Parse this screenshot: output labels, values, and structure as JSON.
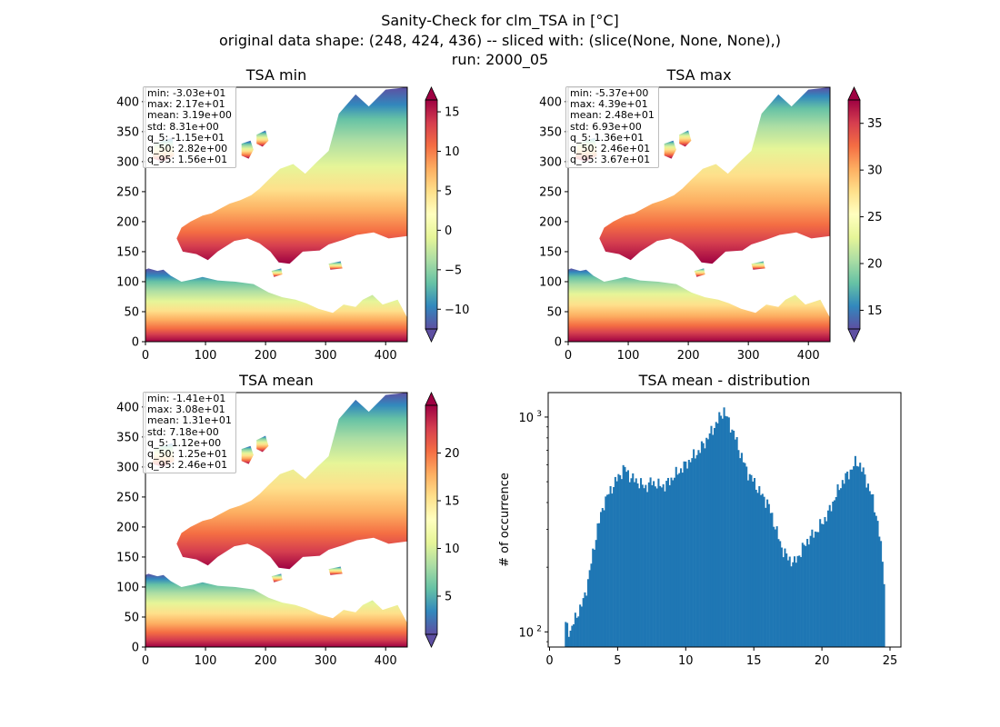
{
  "figure": {
    "title_lines": [
      "Sanity-Check for clm_TSA in [°C]",
      "original data shape: (248, 424, 436) -- sliced with: (slice(None, None, None),)",
      "run: 2000_05"
    ]
  },
  "chart_data": [
    {
      "type": "heatmap",
      "title": "TSA min",
      "colormap": "Spectral_r",
      "xlim": [
        0,
        436
      ],
      "ylim": [
        0,
        424
      ],
      "xticks": [
        "0",
        "100",
        "200",
        "300",
        "400"
      ],
      "yticks": [
        "0",
        "50",
        "100",
        "150",
        "200",
        "250",
        "300",
        "350",
        "400"
      ],
      "colorbar": {
        "range": [
          -12.5,
          16.5
        ],
        "ticks": [
          "15",
          "10",
          "5",
          "0",
          "−5",
          "−10"
        ],
        "extend": "both"
      },
      "stats": [
        "min: -3.03e+01",
        "max: 2.17e+01",
        "mean: 3.19e+00",
        "std: 8.31e+00",
        "q_5: -1.15e+01",
        "q_50: 2.82e+00",
        "q_95: 1.56e+01"
      ]
    },
    {
      "type": "heatmap",
      "title": "TSA max",
      "colormap": "Spectral_r",
      "xlim": [
        0,
        436
      ],
      "ylim": [
        0,
        424
      ],
      "xticks": [
        "0",
        "100",
        "200",
        "300",
        "400"
      ],
      "yticks": [
        "0",
        "50",
        "100",
        "150",
        "200",
        "250",
        "300",
        "350",
        "400"
      ],
      "colorbar": {
        "range": [
          13,
          37.5
        ],
        "ticks": [
          "35",
          "30",
          "25",
          "20",
          "15"
        ],
        "extend": "both"
      },
      "stats": [
        "min: -5.37e+00",
        "max: 4.39e+01",
        "mean: 2.48e+01",
        "std: 6.93e+00",
        "q_5: 1.36e+01",
        "q_50: 2.46e+01",
        "q_95: 3.67e+01"
      ]
    },
    {
      "type": "heatmap",
      "title": "TSA mean",
      "colormap": "Spectral_r",
      "xlim": [
        0,
        436
      ],
      "ylim": [
        0,
        424
      ],
      "xticks": [
        "0",
        "100",
        "200",
        "300",
        "400"
      ],
      "yticks": [
        "0",
        "50",
        "100",
        "150",
        "200",
        "250",
        "300",
        "350",
        "400"
      ],
      "colorbar": {
        "range": [
          1,
          25
        ],
        "ticks": [
          "20",
          "15",
          "10",
          "5"
        ],
        "extend": "both"
      },
      "stats": [
        "min: -1.41e+01",
        "max: 3.08e+01",
        "mean: 1.31e+01",
        "std: 7.18e+00",
        "q_5: 1.12e+00",
        "q_50: 1.25e+01",
        "q_95: 2.46e+01"
      ]
    },
    {
      "type": "bar",
      "title": "TSA mean - distribution",
      "xlabel": "",
      "ylabel": "# of occurrence",
      "yscale": "log",
      "xlim": [
        -0.1,
        25.8
      ],
      "ylim": [
        85,
        1300
      ],
      "xticks": [
        "0",
        "5",
        "10",
        "15",
        "20",
        "25"
      ],
      "yticks": [
        "10",
        "10"
      ],
      "ytick_exponents": [
        "2",
        "3"
      ],
      "color": "#1f77b4",
      "bins": {
        "start": 1.12,
        "width": 0.1175
      },
      "anchors": [
        [
          1.1,
          110
        ],
        [
          1.5,
          100
        ],
        [
          2.0,
          120
        ],
        [
          2.5,
          140
        ],
        [
          2.8,
          170
        ],
        [
          3.0,
          200
        ],
        [
          3.5,
          300
        ],
        [
          4.0,
          400
        ],
        [
          4.5,
          460
        ],
        [
          5.0,
          520
        ],
        [
          5.5,
          580
        ],
        [
          6.0,
          520
        ],
        [
          6.5,
          500
        ],
        [
          7.0,
          470
        ],
        [
          7.5,
          500
        ],
        [
          8.0,
          480
        ],
        [
          8.5,
          480
        ],
        [
          9.0,
          520
        ],
        [
          9.5,
          560
        ],
        [
          10.0,
          600
        ],
        [
          10.5,
          650
        ],
        [
          11.0,
          700
        ],
        [
          11.5,
          780
        ],
        [
          12.0,
          880
        ],
        [
          12.5,
          1000
        ],
        [
          12.8,
          1080
        ],
        [
          13.0,
          1000
        ],
        [
          13.5,
          850
        ],
        [
          14.0,
          680
        ],
        [
          14.5,
          560
        ],
        [
          15.0,
          500
        ],
        [
          15.5,
          440
        ],
        [
          16.0,
          400
        ],
        [
          16.5,
          320
        ],
        [
          17.0,
          250
        ],
        [
          17.5,
          220
        ],
        [
          18.0,
          210
        ],
        [
          18.5,
          240
        ],
        [
          19.0,
          270
        ],
        [
          19.5,
          290
        ],
        [
          20.0,
          320
        ],
        [
          20.5,
          360
        ],
        [
          21.0,
          430
        ],
        [
          21.5,
          500
        ],
        [
          22.0,
          550
        ],
        [
          22.5,
          620
        ],
        [
          22.8,
          600
        ],
        [
          23.2,
          520
        ],
        [
          23.7,
          420
        ],
        [
          24.0,
          350
        ],
        [
          24.3,
          260
        ],
        [
          24.6,
          170
        ]
      ]
    }
  ],
  "colors": {
    "bar": "#1f77b4",
    "land_mask": "#ffffff",
    "axis": "#000000"
  }
}
